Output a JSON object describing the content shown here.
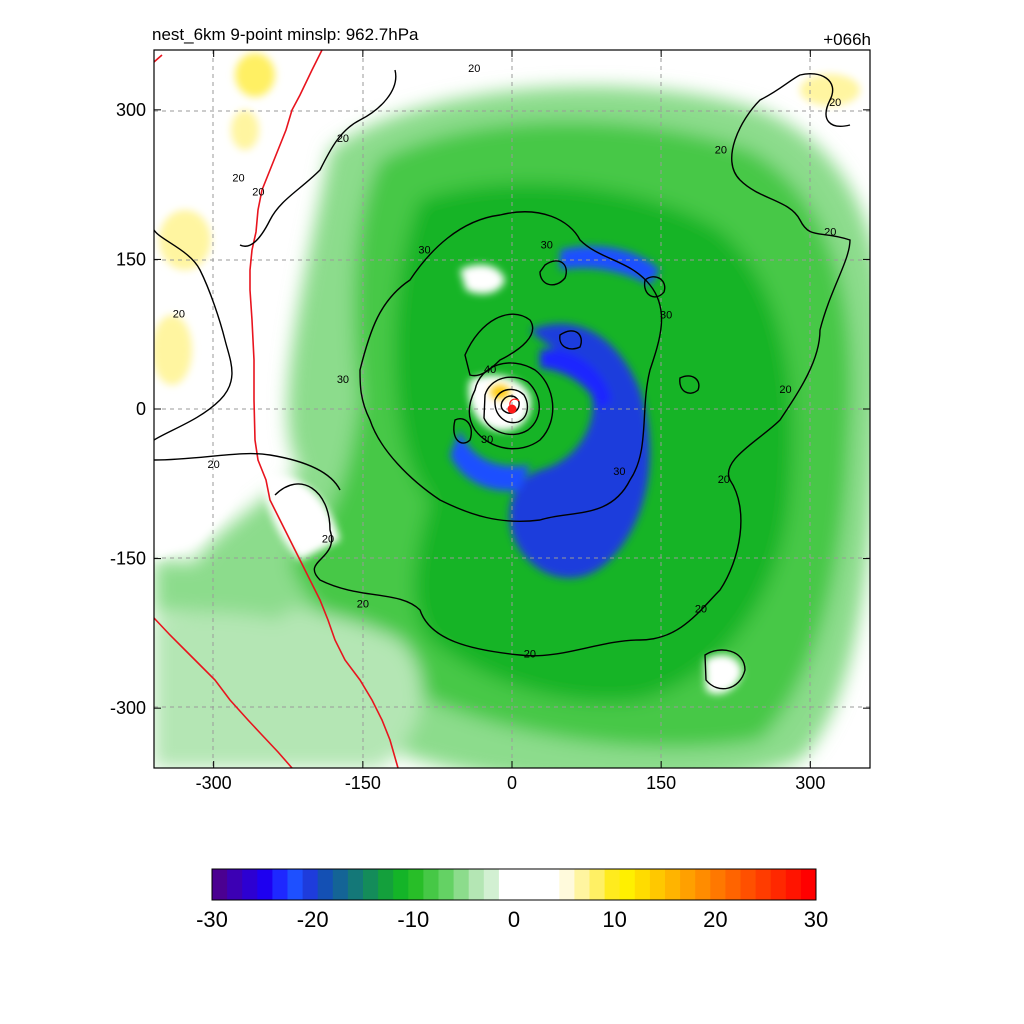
{
  "header": {
    "title": "nest_6km  9-point minslp: 962.7hPa",
    "forecast_hour": "+066h"
  },
  "colors": {
    "coast_line": "#e8141e",
    "contour_line": "#000000",
    "grid_line": "#9a9a9a",
    "storm_center": "#ff1a1a"
  },
  "chart_data": {
    "type": "heatmap",
    "title": "nest_6km  9-point minslp: 962.7hPa",
    "xlabel": "",
    "ylabel": "",
    "xlim": [
      -360,
      360
    ],
    "ylim": [
      -360,
      360
    ],
    "x_ticks": [
      -300,
      -150,
      0,
      150,
      300
    ],
    "y_ticks": [
      300,
      150,
      0,
      -150,
      -300
    ],
    "grid": true,
    "grid_style": "dashed",
    "storm_center": [
      0,
      0
    ],
    "contour_levels": [
      20,
      30,
      40
    ],
    "contour_labels": [
      {
        "text": "20",
        "x": -275,
        "y": 232
      },
      {
        "text": "20",
        "x": -255,
        "y": 218
      },
      {
        "text": "20",
        "x": -335,
        "y": 96
      },
      {
        "text": "20",
        "x": -170,
        "y": 272
      },
      {
        "text": "20",
        "x": -300,
        "y": -55
      },
      {
        "text": "20",
        "x": -185,
        "y": -130
      },
      {
        "text": "20",
        "x": -150,
        "y": -195
      },
      {
        "text": "20",
        "x": 18,
        "y": -245
      },
      {
        "text": "20",
        "x": 190,
        "y": -200
      },
      {
        "text": "20",
        "x": 213,
        "y": -70
      },
      {
        "text": "20",
        "x": 275,
        "y": 20
      },
      {
        "text": "20",
        "x": 320,
        "y": 178
      },
      {
        "text": "20",
        "x": 210,
        "y": 260
      },
      {
        "text": "20",
        "x": 325,
        "y": 308
      },
      {
        "text": "20",
        "x": -38,
        "y": 342
      },
      {
        "text": "30",
        "x": -170,
        "y": 30
      },
      {
        "text": "30",
        "x": -88,
        "y": 160
      },
      {
        "text": "30",
        "x": 35,
        "y": 165
      },
      {
        "text": "30",
        "x": 155,
        "y": 95
      },
      {
        "text": "30",
        "x": 108,
        "y": -62
      },
      {
        "text": "30",
        "x": -25,
        "y": -30
      },
      {
        "text": "40",
        "x": -22,
        "y": 40
      }
    ],
    "colorbar": {
      "min": -30,
      "max": 30,
      "tick_labels": [
        "-30",
        "-20",
        "-10",
        "0",
        "10",
        "20",
        "30"
      ],
      "tick_values": [
        -30,
        -20,
        -10,
        0,
        10,
        20,
        30
      ],
      "colors": [
        "#4b0091",
        "#3c00b4",
        "#2d00d2",
        "#1e00f0",
        "#1e28ff",
        "#1e50ff",
        "#1e3cdc",
        "#1450b4",
        "#146496",
        "#147878",
        "#148c5a",
        "#14a03c",
        "#14b428",
        "#28be28",
        "#46c846",
        "#64d264",
        "#8cdc8c",
        "#b4e6b4",
        "#d2f0d2",
        "#ffffff",
        "#ffffff",
        "#ffffff",
        "#ffffff",
        "#fffadc",
        "#fff5a0",
        "#fff064",
        "#ffeb1e",
        "#fff000",
        "#ffdc00",
        "#ffc800",
        "#ffb400",
        "#ffa000",
        "#ff8c00",
        "#ff7800",
        "#ff6400",
        "#ff5000",
        "#ff3c00",
        "#ff2800",
        "#ff1400",
        "#ff0000"
      ]
    }
  }
}
